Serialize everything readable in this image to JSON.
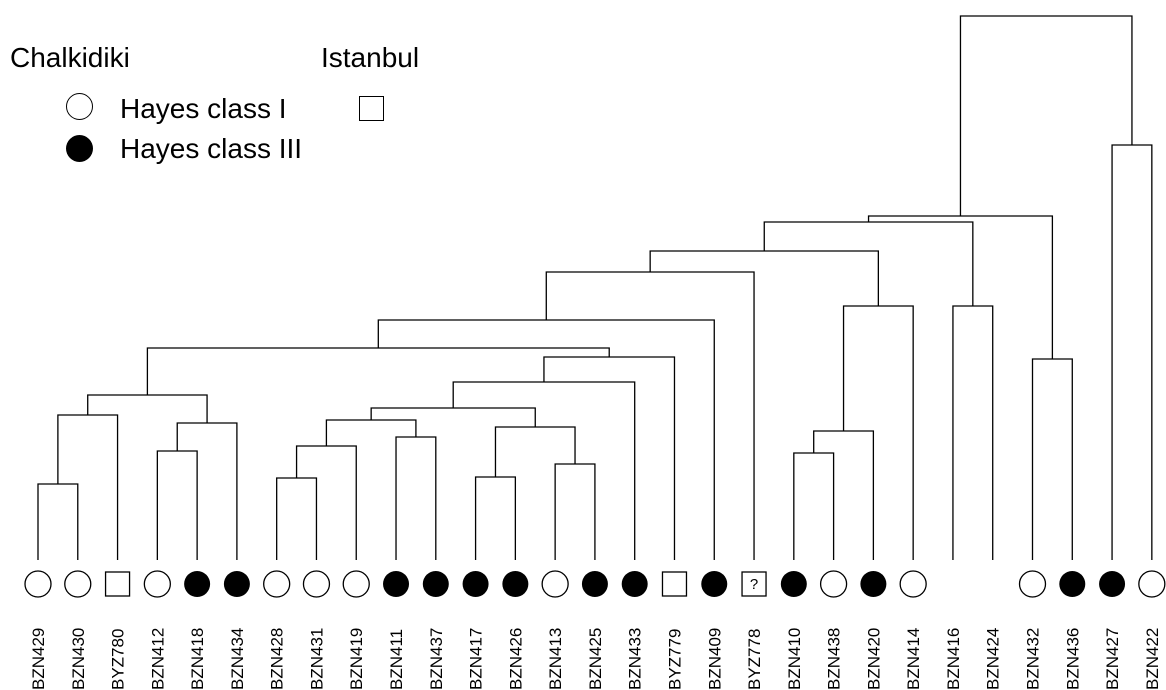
{
  "legend": {
    "group1_title": "Chalkidiki",
    "group2_title": "Istanbul",
    "class1_label": "Hayes class I",
    "class3_label": "Hayes class III"
  },
  "leaves": [
    {
      "label": "BZN429",
      "symbol": "open-circle"
    },
    {
      "label": "BZN430",
      "symbol": "open-circle"
    },
    {
      "label": "BYZ780",
      "symbol": "open-square"
    },
    {
      "label": "BZN412",
      "symbol": "open-circle"
    },
    {
      "label": "BZN418",
      "symbol": "filled-circle"
    },
    {
      "label": "BZN434",
      "symbol": "filled-circle"
    },
    {
      "label": "BZN428",
      "symbol": "open-circle"
    },
    {
      "label": "BZN431",
      "symbol": "open-circle"
    },
    {
      "label": "BZN419",
      "symbol": "open-circle"
    },
    {
      "label": "BZN411",
      "symbol": "filled-circle"
    },
    {
      "label": "BZN437",
      "symbol": "filled-circle"
    },
    {
      "label": "BZN417",
      "symbol": "filled-circle"
    },
    {
      "label": "BZN426",
      "symbol": "filled-circle"
    },
    {
      "label": "BZN413",
      "symbol": "open-circle"
    },
    {
      "label": "BZN425",
      "symbol": "filled-circle"
    },
    {
      "label": "BZN433",
      "symbol": "filled-circle"
    },
    {
      "label": "BYZ779",
      "symbol": "open-square"
    },
    {
      "label": "BZN409",
      "symbol": "filled-circle"
    },
    {
      "label": "BYZ778",
      "symbol": "question-square",
      "symbol_text": "?"
    },
    {
      "label": "BZN410",
      "symbol": "filled-circle"
    },
    {
      "label": "BZN438",
      "symbol": "open-circle"
    },
    {
      "label": "BZN420",
      "symbol": "filled-circle"
    },
    {
      "label": "BZN414",
      "symbol": "open-circle"
    },
    {
      "label": "BZN416",
      "symbol": "none"
    },
    {
      "label": "BZN424",
      "symbol": "none"
    },
    {
      "label": "BZN432",
      "symbol": "open-circle"
    },
    {
      "label": "BZN436",
      "symbol": "filled-circle"
    },
    {
      "label": "BZN427",
      "symbol": "filled-circle"
    },
    {
      "label": "BZN422",
      "symbol": "open-circle"
    }
  ]
}
